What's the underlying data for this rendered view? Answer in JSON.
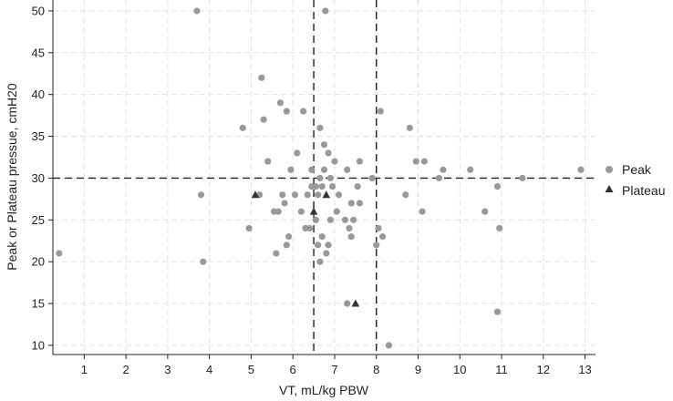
{
  "chart_data": {
    "type": "scatter",
    "xlabel": "VT, mL/kg PBW",
    "ylabel": "Peak or Plateau pressue, cmH20",
    "xlim": [
      0.25,
      13.25
    ],
    "ylim": [
      8.9,
      51.3
    ],
    "xticks": [
      "1",
      "2",
      "3",
      "4",
      "5",
      "6",
      "7",
      "8",
      "9",
      "10",
      "11",
      "12",
      "13"
    ],
    "yticks": [
      "10",
      "15",
      "20",
      "25",
      "30",
      "35",
      "40",
      "45",
      "50"
    ],
    "grid": true,
    "legend_position": "right",
    "reference_lines": {
      "vertical": [
        6.5,
        8
      ],
      "horizontal": [
        30
      ]
    },
    "series": [
      {
        "name": "Peak",
        "marker": "circle",
        "color": "#999999",
        "points": [
          {
            "x": 0.4,
            "y": 21
          },
          {
            "x": 3.7,
            "y": 50
          },
          {
            "x": 3.8,
            "y": 28
          },
          {
            "x": 3.85,
            "y": 20
          },
          {
            "x": 4.8,
            "y": 36
          },
          {
            "x": 4.95,
            "y": 24
          },
          {
            "x": 5.2,
            "y": 28
          },
          {
            "x": 5.25,
            "y": 42
          },
          {
            "x": 5.3,
            "y": 37
          },
          {
            "x": 5.4,
            "y": 32
          },
          {
            "x": 5.55,
            "y": 26
          },
          {
            "x": 5.6,
            "y": 21
          },
          {
            "x": 5.65,
            "y": 26
          },
          {
            "x": 5.7,
            "y": 39
          },
          {
            "x": 5.75,
            "y": 28
          },
          {
            "x": 5.8,
            "y": 27
          },
          {
            "x": 5.85,
            "y": 38
          },
          {
            "x": 5.85,
            "y": 22
          },
          {
            "x": 5.9,
            "y": 23
          },
          {
            "x": 5.95,
            "y": 31
          },
          {
            "x": 6.05,
            "y": 28
          },
          {
            "x": 6.1,
            "y": 33
          },
          {
            "x": 6.2,
            "y": 26
          },
          {
            "x": 6.25,
            "y": 38
          },
          {
            "x": 6.3,
            "y": 24
          },
          {
            "x": 6.35,
            "y": 28
          },
          {
            "x": 6.4,
            "y": 24
          },
          {
            "x": 6.45,
            "y": 31
          },
          {
            "x": 6.45,
            "y": 29
          },
          {
            "x": 6.55,
            "y": 25
          },
          {
            "x": 6.55,
            "y": 29
          },
          {
            "x": 6.6,
            "y": 22
          },
          {
            "x": 6.6,
            "y": 28
          },
          {
            "x": 6.65,
            "y": 20
          },
          {
            "x": 6.65,
            "y": 36
          },
          {
            "x": 6.65,
            "y": 30
          },
          {
            "x": 6.7,
            "y": 23
          },
          {
            "x": 6.7,
            "y": 29
          },
          {
            "x": 6.75,
            "y": 34
          },
          {
            "x": 6.75,
            "y": 31
          },
          {
            "x": 6.78,
            "y": 50
          },
          {
            "x": 6.8,
            "y": 21
          },
          {
            "x": 6.85,
            "y": 33
          },
          {
            "x": 6.85,
            "y": 22
          },
          {
            "x": 6.9,
            "y": 25
          },
          {
            "x": 6.9,
            "y": 30
          },
          {
            "x": 6.95,
            "y": 29
          },
          {
            "x": 7.0,
            "y": 32
          },
          {
            "x": 7.05,
            "y": 26
          },
          {
            "x": 7.1,
            "y": 28
          },
          {
            "x": 7.25,
            "y": 25
          },
          {
            "x": 7.3,
            "y": 31
          },
          {
            "x": 7.3,
            "y": 15
          },
          {
            "x": 7.35,
            "y": 24
          },
          {
            "x": 7.4,
            "y": 23
          },
          {
            "x": 7.4,
            "y": 27
          },
          {
            "x": 7.45,
            "y": 25
          },
          {
            "x": 7.55,
            "y": 29
          },
          {
            "x": 7.6,
            "y": 32
          },
          {
            "x": 7.6,
            "y": 27
          },
          {
            "x": 7.9,
            "y": 30
          },
          {
            "x": 8.0,
            "y": 22
          },
          {
            "x": 8.05,
            "y": 24
          },
          {
            "x": 8.1,
            "y": 38
          },
          {
            "x": 8.15,
            "y": 23
          },
          {
            "x": 8.3,
            "y": 10
          },
          {
            "x": 8.7,
            "y": 28
          },
          {
            "x": 8.8,
            "y": 36
          },
          {
            "x": 8.95,
            "y": 32
          },
          {
            "x": 9.1,
            "y": 26
          },
          {
            "x": 9.15,
            "y": 32
          },
          {
            "x": 9.5,
            "y": 30
          },
          {
            "x": 9.6,
            "y": 31
          },
          {
            "x": 10.25,
            "y": 31
          },
          {
            "x": 10.6,
            "y": 26
          },
          {
            "x": 10.9,
            "y": 29
          },
          {
            "x": 10.9,
            "y": 14
          },
          {
            "x": 10.95,
            "y": 24
          },
          {
            "x": 11.5,
            "y": 30
          },
          {
            "x": 12.9,
            "y": 31
          }
        ]
      },
      {
        "name": "Plateau",
        "marker": "triangle",
        "color": "#333333",
        "points": [
          {
            "x": 5.1,
            "y": 28
          },
          {
            "x": 6.5,
            "y": 26
          },
          {
            "x": 6.8,
            "y": 28
          },
          {
            "x": 7.5,
            "y": 15
          }
        ]
      }
    ]
  }
}
